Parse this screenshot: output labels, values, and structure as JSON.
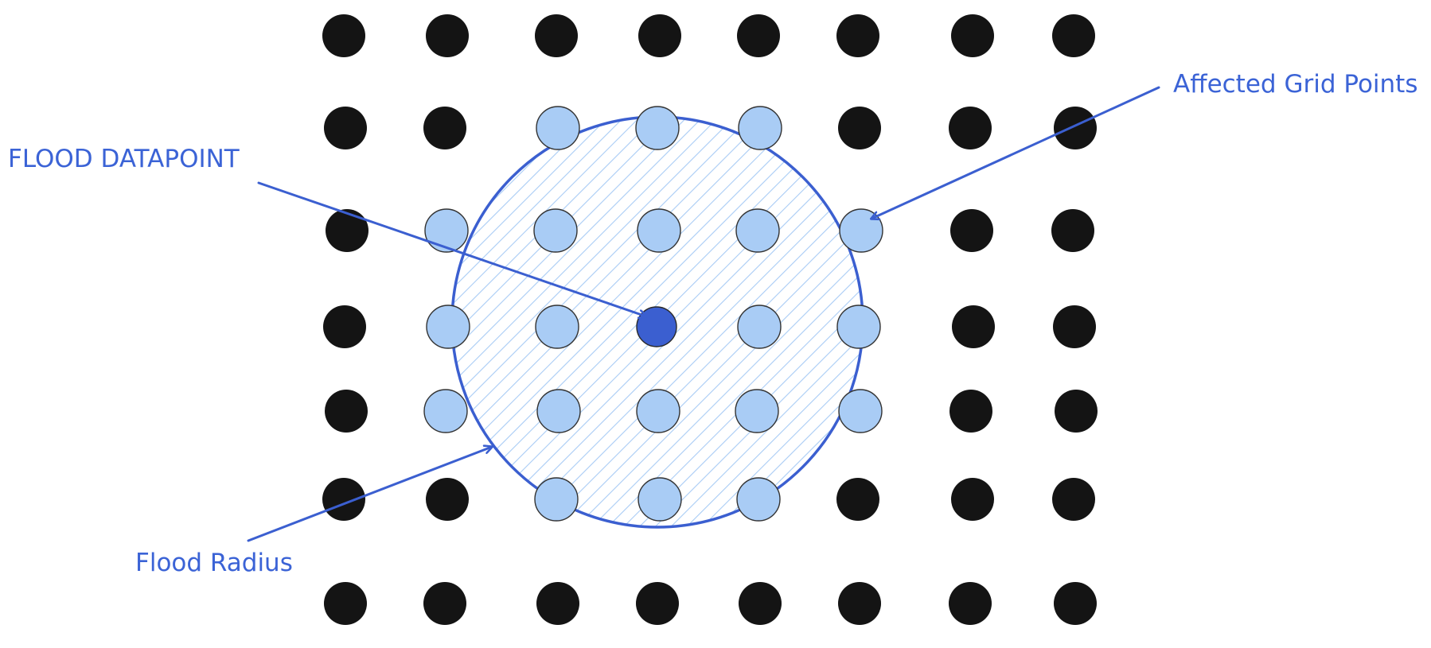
{
  "labels": {
    "datapoint": "FLOOD DATAPOINT",
    "radius": "Flood Radius",
    "affected": "Affected Grid Points"
  },
  "colors": {
    "grid_point": "#141414",
    "affected_point": "#a9ccf5",
    "flood_datapoint": "#3b5fd0",
    "annotation": "#3b63d6",
    "background": "#ffffff"
  },
  "grid": {
    "rows": 7,
    "columns": 8,
    "flood_datapoint_cell": [
      3,
      3
    ],
    "affected_cells": [
      [
        1,
        2
      ],
      [
        1,
        3
      ],
      [
        1,
        4
      ],
      [
        2,
        1
      ],
      [
        2,
        2
      ],
      [
        2,
        3
      ],
      [
        2,
        4
      ],
      [
        2,
        5
      ],
      [
        3,
        1
      ],
      [
        3,
        2
      ],
      [
        3,
        4
      ],
      [
        3,
        5
      ],
      [
        4,
        1
      ],
      [
        4,
        2
      ],
      [
        4,
        3
      ],
      [
        4,
        4
      ],
      [
        4,
        5
      ],
      [
        5,
        2
      ],
      [
        5,
        3
      ],
      [
        5,
        4
      ]
    ]
  }
}
